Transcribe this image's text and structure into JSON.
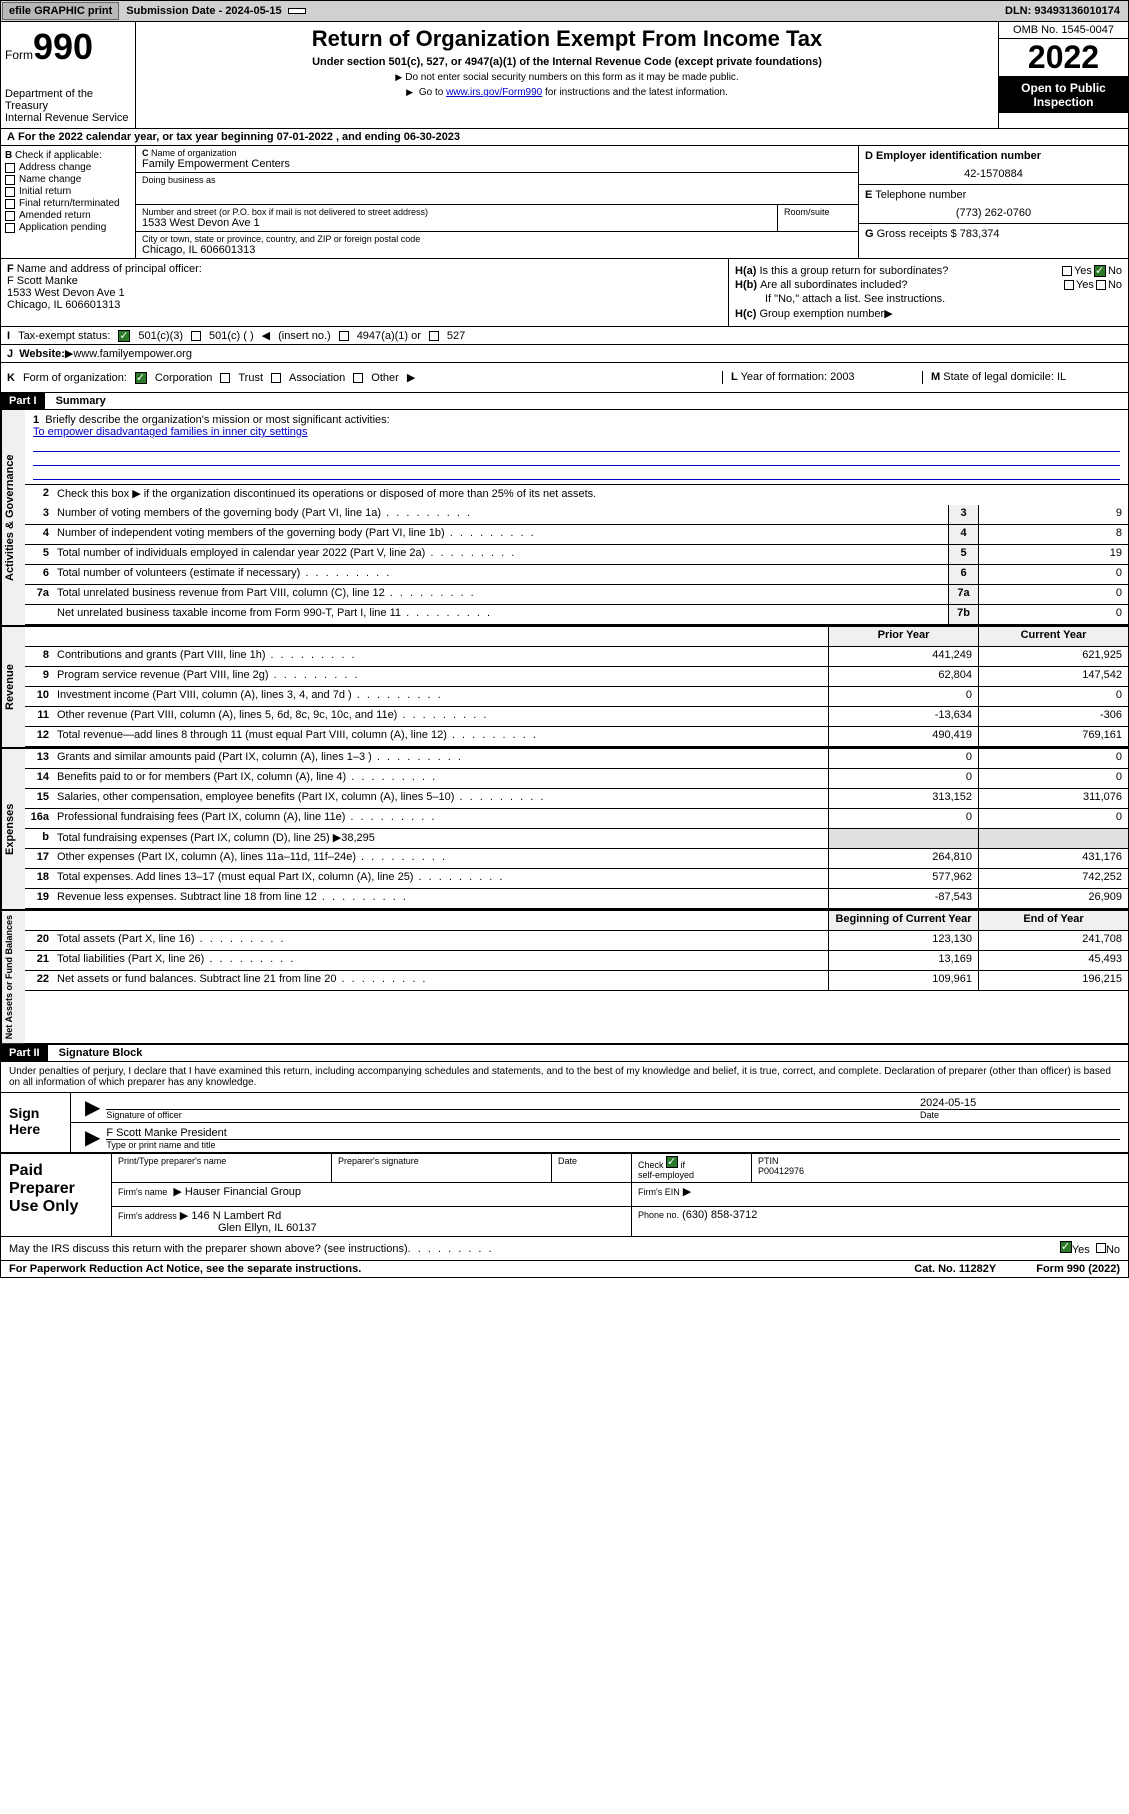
{
  "topbar": {
    "efile": "efile GRAPHIC print",
    "sub_label": "Submission Date - 2024-05-15",
    "dln": "DLN: 93493136010174"
  },
  "header": {
    "form_word": "Form",
    "form_num": "990",
    "dept": "Department of the Treasury",
    "irs": "Internal Revenue Service",
    "title": "Return of Organization Exempt From Income Tax",
    "sub": "Under section 501(c), 527, or 4947(a)(1) of the Internal Revenue Code (except private foundations)",
    "note1": "Do not enter social security numbers on this form as it may be made public.",
    "note2_pre": "Go to ",
    "note2_link": "www.irs.gov/Form990",
    "note2_post": " for instructions and the latest information.",
    "omb": "OMB No. 1545-0047",
    "year": "2022",
    "open": "Open to Public Inspection"
  },
  "calyear": "For the 2022 calendar year, or tax year beginning 07-01-2022    , and ending 06-30-2023",
  "b": {
    "label": "Check if applicable:",
    "items": [
      "Address change",
      "Name change",
      "Initial return",
      "Final return/terminated",
      "Amended return",
      "Application pending"
    ]
  },
  "c": {
    "name_label": "Name of organization",
    "name": "Family Empowerment Centers",
    "dba_label": "Doing business as",
    "addr_label": "Number and street (or P.O. box if mail is not delivered to street address)",
    "addr": "1533 West Devon Ave 1",
    "room_label": "Room/suite",
    "city_label": "City or town, state or province, country, and ZIP or foreign postal code",
    "city": "Chicago, IL  606601313"
  },
  "d": {
    "ein_label": "Employer identification number",
    "ein": "42-1570884",
    "tel_label": "Telephone number",
    "tel": "(773) 262-0760",
    "gross_label": "Gross receipts $",
    "gross": "783,374"
  },
  "f": {
    "label": "Name and address of principal officer:",
    "name": "F Scott Manke",
    "addr1": "1533 West Devon Ave 1",
    "addr2": "Chicago, IL  606601313"
  },
  "h": {
    "a_label": "Is this a group return for subordinates?",
    "b_label": "Are all subordinates included?",
    "b_note": "If \"No,\" attach a list. See instructions.",
    "c_label": "Group exemption number",
    "yes": "Yes",
    "no": "No"
  },
  "i": {
    "label": "Tax-exempt status:",
    "opt1": "501(c)(3)",
    "opt2": "501(c) (  )",
    "opt2b": "(insert no.)",
    "opt3": "4947(a)(1) or",
    "opt4": "527"
  },
  "j": {
    "label": "Website:",
    "url": "www.familyempower.org"
  },
  "k": {
    "label": "Form of organization:",
    "corp": "Corporation",
    "trust": "Trust",
    "assoc": "Association",
    "other": "Other"
  },
  "l": {
    "label": "Year of formation:",
    "val": "2003"
  },
  "m": {
    "label": "State of legal domicile:",
    "val": "IL"
  },
  "part1": {
    "hdr": "Part I",
    "title": "Summary",
    "q1_label": "Briefly describe the organization's mission or most significant activities:",
    "q1_text": "To empower disadvantaged families in inner city settings",
    "q2": "Check this box ▶  if the organization discontinued its operations or disposed of more than 25% of its net assets.",
    "rows_ag": [
      {
        "n": "3",
        "t": "Number of voting members of the governing body (Part VI, line 1a)",
        "box": "3",
        "v": "9"
      },
      {
        "n": "4",
        "t": "Number of independent voting members of the governing body (Part VI, line 1b)",
        "box": "4",
        "v": "8"
      },
      {
        "n": "5",
        "t": "Total number of individuals employed in calendar year 2022 (Part V, line 2a)",
        "box": "5",
        "v": "19"
      },
      {
        "n": "6",
        "t": "Total number of volunteers (estimate if necessary)",
        "box": "6",
        "v": "0"
      },
      {
        "n": "7a",
        "t": "Total unrelated business revenue from Part VIII, column (C), line 12",
        "box": "7a",
        "v": "0"
      },
      {
        "n": "",
        "t": "Net unrelated business taxable income from Form 990-T, Part I, line 11",
        "box": "7b",
        "v": "0"
      }
    ],
    "py_hdr": "Prior Year",
    "cy_hdr": "Current Year",
    "rows_rev": [
      {
        "n": "8",
        "t": "Contributions and grants (Part VIII, line 1h)",
        "py": "441,249",
        "cy": "621,925"
      },
      {
        "n": "9",
        "t": "Program service revenue (Part VIII, line 2g)",
        "py": "62,804",
        "cy": "147,542"
      },
      {
        "n": "10",
        "t": "Investment income (Part VIII, column (A), lines 3, 4, and 7d )",
        "py": "0",
        "cy": "0"
      },
      {
        "n": "11",
        "t": "Other revenue (Part VIII, column (A), lines 5, 6d, 8c, 9c, 10c, and 11e)",
        "py": "-13,634",
        "cy": "-306"
      },
      {
        "n": "12",
        "t": "Total revenue—add lines 8 through 11 (must equal Part VIII, column (A), line 12)",
        "py": "490,419",
        "cy": "769,161"
      }
    ],
    "rows_exp": [
      {
        "n": "13",
        "t": "Grants and similar amounts paid (Part IX, column (A), lines 1–3 )",
        "py": "0",
        "cy": "0"
      },
      {
        "n": "14",
        "t": "Benefits paid to or for members (Part IX, column (A), line 4)",
        "py": "0",
        "cy": "0"
      },
      {
        "n": "15",
        "t": "Salaries, other compensation, employee benefits (Part IX, column (A), lines 5–10)",
        "py": "313,152",
        "cy": "311,076"
      },
      {
        "n": "16a",
        "t": "Professional fundraising fees (Part IX, column (A), line 11e)",
        "py": "0",
        "cy": "0"
      }
    ],
    "row16b_pre": "Total fundraising expenses (Part IX, column (D), line 25) ▶",
    "row16b_val": "38,295",
    "rows_exp2": [
      {
        "n": "17",
        "t": "Other expenses (Part IX, column (A), lines 11a–11d, 11f–24e)",
        "py": "264,810",
        "cy": "431,176"
      },
      {
        "n": "18",
        "t": "Total expenses. Add lines 13–17 (must equal Part IX, column (A), line 25)",
        "py": "577,962",
        "cy": "742,252"
      },
      {
        "n": "19",
        "t": "Revenue less expenses. Subtract line 18 from line 12",
        "py": "-87,543",
        "cy": "26,909"
      }
    ],
    "boy_hdr": "Beginning of Current Year",
    "eoy_hdr": "End of Year",
    "rows_na": [
      {
        "n": "20",
        "t": "Total assets (Part X, line 16)",
        "py": "123,130",
        "cy": "241,708"
      },
      {
        "n": "21",
        "t": "Total liabilities (Part X, line 26)",
        "py": "13,169",
        "cy": "45,493"
      },
      {
        "n": "22",
        "t": "Net assets or fund balances. Subtract line 21 from line 20",
        "py": "109,961",
        "cy": "196,215"
      }
    ],
    "vert_ag": "Activities & Governance",
    "vert_rev": "Revenue",
    "vert_exp": "Expenses",
    "vert_na": "Net Assets or Fund Balances"
  },
  "part2": {
    "hdr": "Part II",
    "title": "Signature Block",
    "decl": "Under penalties of perjury, I declare that I have examined this return, including accompanying schedules and statements, and to the best of my knowledge and belief, it is true, correct, and complete. Declaration of preparer (other than officer) is based on all information of which preparer has any knowledge.",
    "sign_here": "Sign Here",
    "sig_officer": "Signature of officer",
    "sig_date": "Date",
    "sig_date_val": "2024-05-15",
    "officer_name": "F Scott Manke  President",
    "officer_sub": "Type or print name and title",
    "paid_prep": "Paid Preparer Use Only",
    "prep_name_hdr": "Print/Type preparer's name",
    "prep_sig_hdr": "Preparer's signature",
    "prep_date_hdr": "Date",
    "prep_check": "Check",
    "prep_self": "self-employed",
    "prep_ptin_hdr": "PTIN",
    "prep_ptin": "P00412976",
    "firm_name_label": "Firm's name",
    "firm_name": "Hauser Financial Group",
    "firm_ein_label": "Firm's EIN",
    "firm_addr_label": "Firm's address",
    "firm_addr1": "146 N Lambert Rd",
    "firm_addr2": "Glen Ellyn, IL  60137",
    "firm_phone_label": "Phone no.",
    "firm_phone": "(630) 858-3712",
    "discuss": "May the IRS discuss this return with the preparer shown above? (see instructions)",
    "paperwork": "For Paperwork Reduction Act Notice, see the separate instructions.",
    "catno": "Cat. No. 11282Y",
    "formno": "Form 990 (2022)"
  },
  "letters": {
    "A": "A",
    "B": "B",
    "C": "C",
    "D": "D",
    "E": "E",
    "F": "F",
    "G": "G",
    "H_a": "H(a)",
    "H_b": "H(b)",
    "H_c": "H(c)",
    "I": "I",
    "J": "J",
    "K": "K",
    "L": "L",
    "M": "M",
    "n1": "1",
    "n2": "2",
    "nb": "b",
    "if": "if"
  }
}
